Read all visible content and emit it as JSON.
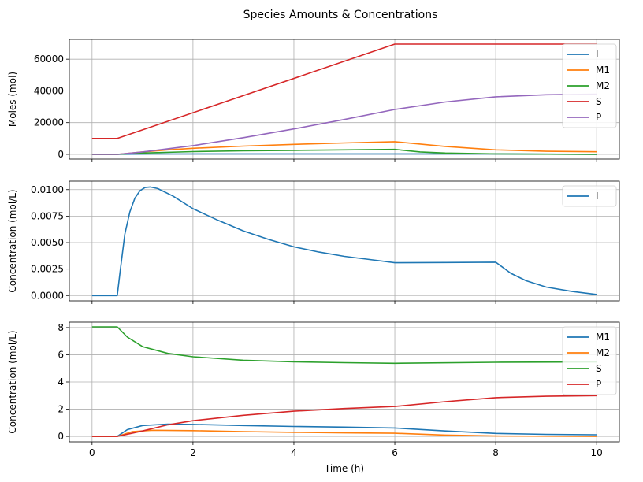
{
  "figure": {
    "title": "Species Amounts & Concentrations"
  },
  "chart_data": [
    {
      "type": "line",
      "ylabel": "Moles (mol)",
      "xlabel": "",
      "xlim": [
        -0.45,
        10.45
      ],
      "ylim": [
        -3000,
        72500
      ],
      "xticks": [
        0,
        2,
        4,
        6,
        8,
        10
      ],
      "yticks": [
        0,
        20000,
        40000,
        60000
      ],
      "ytick_labels": [
        "0",
        "20000",
        "40000",
        "60000"
      ],
      "grid": true,
      "legend_position": "top-right",
      "series": [
        {
          "name": "I",
          "color": "#1f77b4",
          "points": [
            [
              0,
              0
            ],
            [
              0.5,
              0
            ],
            [
              0.6,
              100
            ],
            [
              1.2,
              250
            ],
            [
              6,
              300
            ],
            [
              8,
              300
            ],
            [
              8.5,
              200
            ],
            [
              10,
              30
            ]
          ]
        },
        {
          "name": "M1",
          "color": "#ff7f0e",
          "points": [
            [
              0,
              0
            ],
            [
              0.5,
              0
            ],
            [
              1,
              1500
            ],
            [
              1.5,
              2800
            ],
            [
              2,
              3800
            ],
            [
              3,
              5200
            ],
            [
              4,
              6300
            ],
            [
              5,
              7200
            ],
            [
              6,
              8000
            ],
            [
              7,
              5000
            ],
            [
              8,
              2800
            ],
            [
              9,
              1900
            ],
            [
              10,
              1600
            ]
          ]
        },
        {
          "name": "M2",
          "color": "#2ca02c",
          "points": [
            [
              0,
              0
            ],
            [
              0.5,
              0
            ],
            [
              1,
              800
            ],
            [
              2,
              1700
            ],
            [
              3,
              2200
            ],
            [
              4,
              2500
            ],
            [
              5,
              2800
            ],
            [
              6,
              3100
            ],
            [
              6.5,
              1500
            ],
            [
              7,
              800
            ],
            [
              8,
              300
            ],
            [
              10,
              0
            ]
          ]
        },
        {
          "name": "S",
          "color": "#d62728",
          "points": [
            [
              0,
              10000
            ],
            [
              0.5,
              10000
            ],
            [
              6,
              69500
            ],
            [
              10,
              69500
            ]
          ]
        },
        {
          "name": "P",
          "color": "#9467bd",
          "points": [
            [
              0,
              0
            ],
            [
              0.5,
              0
            ],
            [
              1,
              1500
            ],
            [
              2,
              5500
            ],
            [
              3,
              10500
            ],
            [
              4,
              16000
            ],
            [
              5,
              22000
            ],
            [
              6,
              28300
            ],
            [
              7,
              33000
            ],
            [
              8,
              36300
            ],
            [
              9,
              37600
            ],
            [
              10,
              38000
            ]
          ]
        }
      ]
    },
    {
      "type": "line",
      "ylabel": "Concentration (mol/L)",
      "xlabel": "",
      "xlim": [
        -0.45,
        10.45
      ],
      "ylim": [
        -0.0005,
        0.0108
      ],
      "xticks": [
        0,
        2,
        4,
        6,
        8,
        10
      ],
      "yticks": [
        0,
        0.0025,
        0.005,
        0.0075,
        0.01
      ],
      "ytick_labels": [
        "0.0000",
        "0.0025",
        "0.0050",
        "0.0075",
        "0.0100"
      ],
      "grid": true,
      "legend_position": "top-right",
      "series": [
        {
          "name": "I",
          "color": "#1f77b4",
          "points": [
            [
              0,
              0
            ],
            [
              0.5,
              0
            ],
            [
              0.55,
              0.002
            ],
            [
              0.65,
              0.0058
            ],
            [
              0.75,
              0.0079
            ],
            [
              0.85,
              0.0092
            ],
            [
              0.95,
              0.0099
            ],
            [
              1.05,
              0.0102
            ],
            [
              1.15,
              0.01025
            ],
            [
              1.3,
              0.0101
            ],
            [
              1.6,
              0.0094
            ],
            [
              2,
              0.0082
            ],
            [
              2.5,
              0.0071
            ],
            [
              3,
              0.0061
            ],
            [
              3.5,
              0.0053
            ],
            [
              4,
              0.0046
            ],
            [
              4.5,
              0.0041
            ],
            [
              5,
              0.0037
            ],
            [
              5.5,
              0.0034
            ],
            [
              6,
              0.0031
            ],
            [
              7,
              0.00312
            ],
            [
              8,
              0.00315
            ],
            [
              8.3,
              0.0021
            ],
            [
              8.6,
              0.0014
            ],
            [
              9,
              0.0008
            ],
            [
              9.5,
              0.0004
            ],
            [
              10,
              0.0001
            ]
          ]
        }
      ]
    },
    {
      "type": "line",
      "ylabel": "Concentration (mol/L)",
      "xlabel": "Time (h)",
      "xlim": [
        -0.45,
        10.45
      ],
      "ylim": [
        -0.4,
        8.4
      ],
      "xticks": [
        0,
        2,
        4,
        6,
        8,
        10
      ],
      "xtick_labels": [
        "0",
        "2",
        "4",
        "6",
        "8",
        "10"
      ],
      "yticks": [
        0,
        2,
        4,
        6,
        8
      ],
      "ytick_labels": [
        "0",
        "2",
        "4",
        "6",
        "8"
      ],
      "grid": true,
      "legend_position": "top-right",
      "series": [
        {
          "name": "M1",
          "color": "#1f77b4",
          "points": [
            [
              0,
              0
            ],
            [
              0.5,
              0
            ],
            [
              0.7,
              0.5
            ],
            [
              1,
              0.8
            ],
            [
              1.5,
              0.9
            ],
            [
              2,
              0.88
            ],
            [
              3,
              0.8
            ],
            [
              4,
              0.73
            ],
            [
              5,
              0.68
            ],
            [
              6,
              0.62
            ],
            [
              7,
              0.4
            ],
            [
              8,
              0.22
            ],
            [
              9,
              0.15
            ],
            [
              10,
              0.12
            ]
          ]
        },
        {
          "name": "M2",
          "color": "#ff7f0e",
          "points": [
            [
              0,
              0
            ],
            [
              0.5,
              0
            ],
            [
              0.8,
              0.35
            ],
            [
              1.2,
              0.45
            ],
            [
              2,
              0.42
            ],
            [
              3,
              0.35
            ],
            [
              4,
              0.3
            ],
            [
              5,
              0.26
            ],
            [
              6,
              0.23
            ],
            [
              7,
              0.1
            ],
            [
              8,
              0.03
            ],
            [
              10,
              0
            ]
          ]
        },
        {
          "name": "S",
          "color": "#2ca02c",
          "points": [
            [
              0,
              8.05
            ],
            [
              0.5,
              8.05
            ],
            [
              0.7,
              7.3
            ],
            [
              1,
              6.6
            ],
            [
              1.5,
              6.1
            ],
            [
              2,
              5.85
            ],
            [
              3,
              5.6
            ],
            [
              4,
              5.48
            ],
            [
              5,
              5.42
            ],
            [
              6,
              5.37
            ],
            [
              8,
              5.45
            ],
            [
              10,
              5.47
            ]
          ]
        },
        {
          "name": "P",
          "color": "#d62728",
          "points": [
            [
              0,
              0
            ],
            [
              0.5,
              0
            ],
            [
              1,
              0.4
            ],
            [
              1.5,
              0.85
            ],
            [
              2,
              1.15
            ],
            [
              3,
              1.55
            ],
            [
              4,
              1.85
            ],
            [
              5,
              2.05
            ],
            [
              6,
              2.2
            ],
            [
              7,
              2.55
            ],
            [
              8,
              2.85
            ],
            [
              9,
              2.95
            ],
            [
              10,
              3.0
            ]
          ]
        }
      ]
    }
  ]
}
